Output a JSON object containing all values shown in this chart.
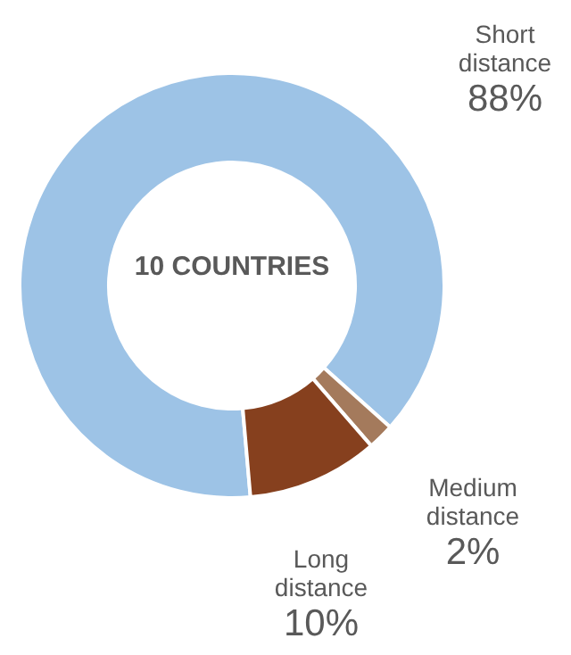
{
  "chart_data": {
    "type": "donut",
    "categories": [
      "Short distance",
      "Medium distance",
      "Long distance"
    ],
    "values": [
      88,
      2,
      10
    ],
    "colors": [
      "#9dc3e6",
      "#a47a5c",
      "#86401e"
    ],
    "value_labels": [
      "88%",
      "2%",
      "10%"
    ],
    "legend": false,
    "annotations": [
      "10 COUNTRIES"
    ]
  }
}
